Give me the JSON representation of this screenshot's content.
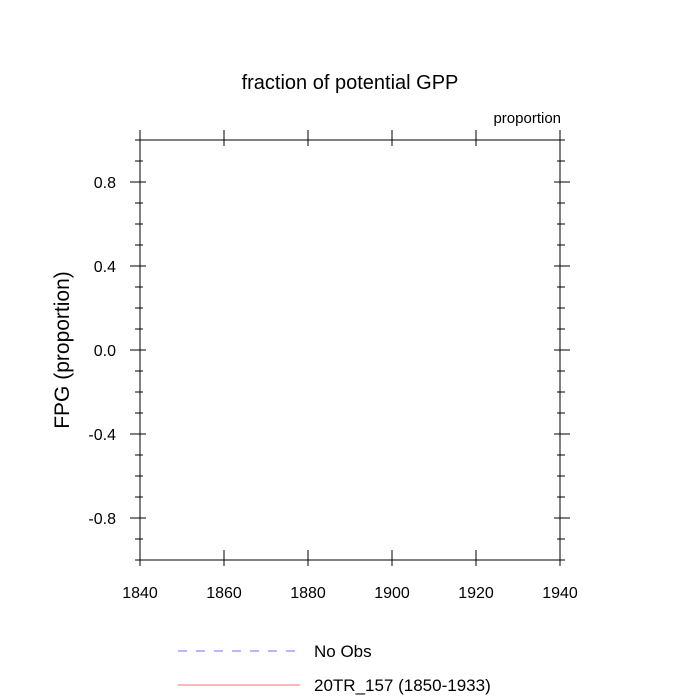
{
  "chart_data": {
    "type": "line",
    "title": "fraction of potential GPP",
    "units_label": "proportion",
    "ylabel": "FPG  (proportion)",
    "xlabel": "",
    "xlim": [
      1840,
      1940
    ],
    "ylim": [
      -1.0,
      1.0
    ],
    "x_ticks": [
      1840,
      1860,
      1880,
      1900,
      1920,
      1940
    ],
    "x_tick_labels": [
      "1840",
      "1860",
      "1880",
      "1900",
      "1920",
      "1940"
    ],
    "y_ticks": [
      0.8,
      0.4,
      0.0,
      -0.4,
      -0.8
    ],
    "y_tick_labels": [
      "0.8",
      "0.4",
      "0.0",
      "-0.4",
      "-0.8"
    ],
    "grid": false,
    "legend_placement": "bottom",
    "series": [
      {
        "name": "No Obs",
        "color": "#6f6fff",
        "dash": "dashed",
        "x": [],
        "y": []
      },
      {
        "name": "20TR_157 (1850-1933)",
        "color": "#ff6f6f",
        "dash": "solid",
        "x": [],
        "y": []
      }
    ]
  }
}
